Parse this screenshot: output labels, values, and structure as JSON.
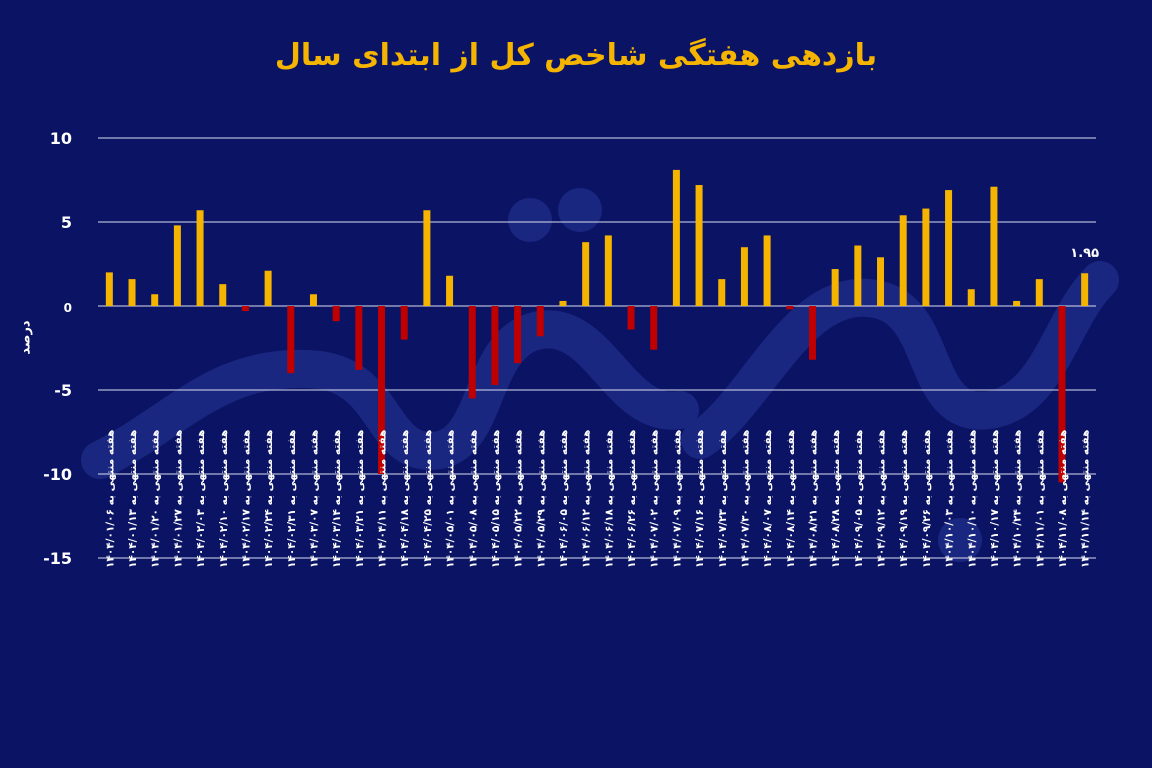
{
  "chart_data": {
    "type": "bar",
    "title": "بازدهی هفتگی شاخص کل از ابتدای سال",
    "ylabel": "درصد",
    "xlabel": "",
    "ylim": [
      -15,
      10
    ],
    "yticks": [
      10,
      5,
      0,
      -5,
      -10,
      -15
    ],
    "ytick_labels": [
      "10",
      "5",
      "0",
      "-5",
      "-10",
      "-15"
    ],
    "grid": true,
    "positive_color": "#f5b400",
    "negative_color": "#c00000",
    "categories": [
      "هفته منتهی به ۱۴۰۴/۰۱/۰۶",
      "هفته منتهی به ۱۴۰۴/۰۱/۱۳",
      "هفته منتهی به ۱۴۰۴/۰۱/۲۰",
      "هفته منتهی به ۱۴۰۴/۰۱/۲۷",
      "هفته منتهی به ۱۴۰۴/۰۲/۰۳",
      "هفته منتهی به ۱۴۰۴/۰۲/۱۰",
      "هفته منتهی به ۱۴۰۴/۰۲/۱۷",
      "هفته منتهی به ۱۴۰۴/۰۲/۲۴",
      "هفته منتهی به ۱۴۰۴/۰۲/۳۱",
      "هفته منتهی به ۱۴۰۴/۰۳/۰۷",
      "هفته منتهی به ۱۴۰۴/۰۳/۱۴",
      "هفته منتهی به ۱۴۰۴/۰۳/۲۱",
      "هفته منتهی به ۱۴۰۴/۰۴/۱۱",
      "هفته منتهی به ۱۴۰۴/۰۴/۱۸",
      "هفته منتهی به ۱۴۰۴/۰۴/۲۵",
      "هفته منتهی به ۱۴۰۴/۰۵/۰۱",
      "هفته منتهی به ۱۴۰۴/۰۵/۰۸",
      "هفته منتهی به ۱۴۰۴/۰۵/۱۵",
      "هفته منتهی به ۱۴۰۴/۰۵/۲۲",
      "هفته منتهی به ۱۴۰۴/۰۵/۲۹",
      "هفته منتهی به ۱۴۰۴/۰۶/۰۵",
      "هفته منتهی به ۱۴۰۴/۰۶/۱۲",
      "هفته منتهی به ۱۴۰۴/۰۶/۱۸",
      "هفته منتهی به ۱۴۰۴/۰۶/۲۶",
      "هفته منتهی به ۱۴۰۴/۰۷/۰۲",
      "هفته منتهی به ۱۴۰۴/۰۷/۰۹",
      "هفته منتهی به ۱۴۰۴/۰۷/۱۶",
      "هفته منتهی به ۱۴۰۴/۰۷/۲۳",
      "هفته منتهی به ۱۴۰۴/۰۷/۳۰",
      "هفته منتهی به ۱۴۰۴/۰۸/۰۷",
      "هفته منتهی به ۱۴۰۴/۰۸/۱۴",
      "هفته منتهی به ۱۴۰۴/۰۸/۲۱",
      "هفته منتهی به ۱۴۰۴/۰۸/۲۸",
      "هفته منتهی به ۱۴۰۴/۰۹/۰۵",
      "هفته منتهی به ۱۴۰۴/۰۹/۱۲",
      "هفته منتهی به ۱۴۰۴/۰۹/۱۹",
      "هفته منتهی به ۱۴۰۴/۰۹/۲۶",
      "هفته منتهی به ۱۴۰۴/۱۰/۰۳",
      "هفته منتهی به ۱۴۰۴/۱۰/۱۰",
      "هفته منتهی به ۱۴۰۴/۱۰/۱۷",
      "هفته منتهی به ۱۴۰۴/۱۰/۲۴",
      "هفته منتهی به ۱۴۰۴/۱۱/۰۱",
      "هفته منتهی به ۱۴۰۴/۱۱/۰۸",
      "هفته منتهی به ۱۴۰۴/۱۱/۱۴"
    ],
    "values": [
      2.0,
      1.6,
      0.7,
      4.8,
      5.7,
      1.3,
      -0.3,
      2.1,
      -4.0,
      0.7,
      -0.9,
      -3.8,
      -10.0,
      -2.0,
      5.7,
      1.8,
      -5.5,
      -4.7,
      -3.4,
      -1.8,
      0.3,
      3.8,
      4.2,
      -1.4,
      -2.6,
      8.1,
      7.2,
      1.6,
      3.5,
      4.2,
      -0.2,
      -3.2,
      2.2,
      3.6,
      2.9,
      5.4,
      5.8,
      6.9,
      1.0,
      7.1,
      0.3,
      1.6,
      -10.5,
      1.95
    ],
    "annotations": [
      {
        "index": 43,
        "text": "۱.۹۵"
      }
    ]
  }
}
